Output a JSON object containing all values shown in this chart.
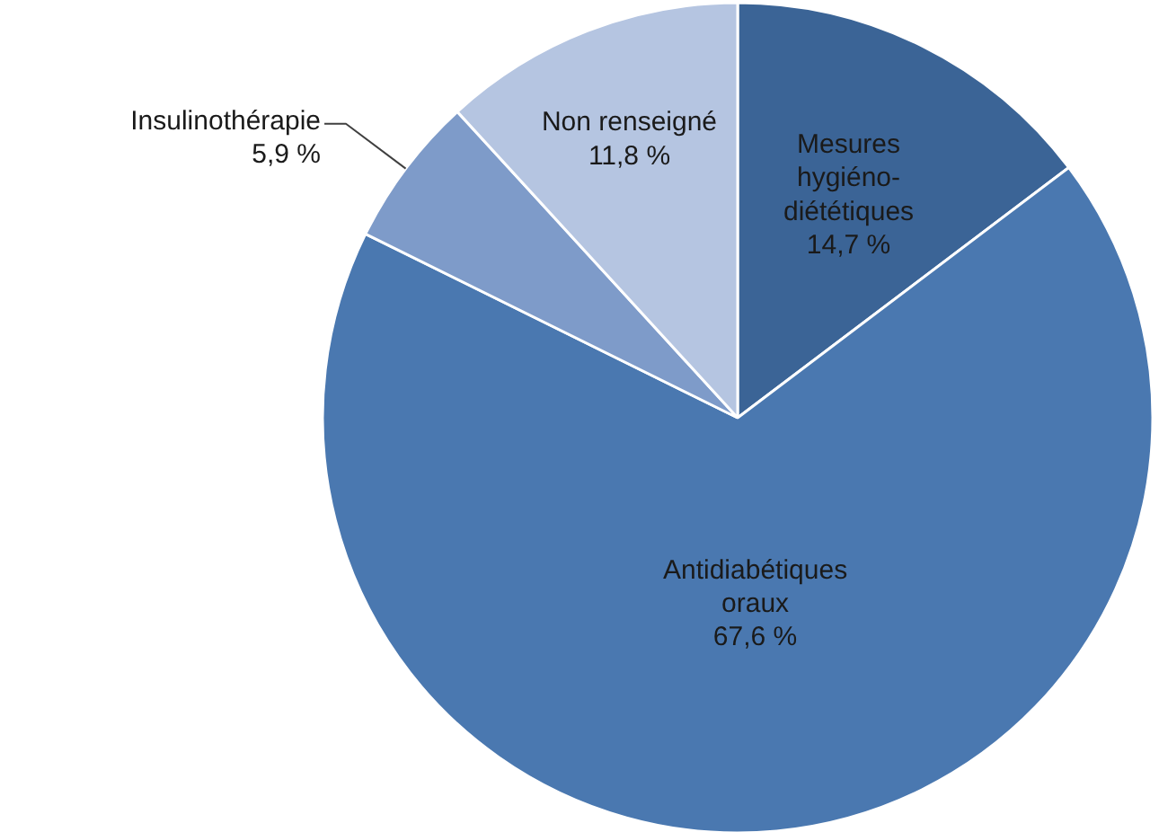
{
  "chart_data": {
    "type": "pie",
    "categories": [
      "Mesures\nhygiéno-\ndiététiques",
      "Antidiabétiques\noraux",
      "Insulinothérapie",
      "Non renseigné"
    ],
    "values": [
      14.7,
      67.6,
      5.9,
      11.8
    ],
    "colors": [
      "#3b6496",
      "#4a78b0",
      "#7e9bc9",
      "#b5c5e1"
    ],
    "value_labels": [
      "14,7 %",
      "67,6 %",
      "5,9 %",
      "11,8 %"
    ]
  }
}
